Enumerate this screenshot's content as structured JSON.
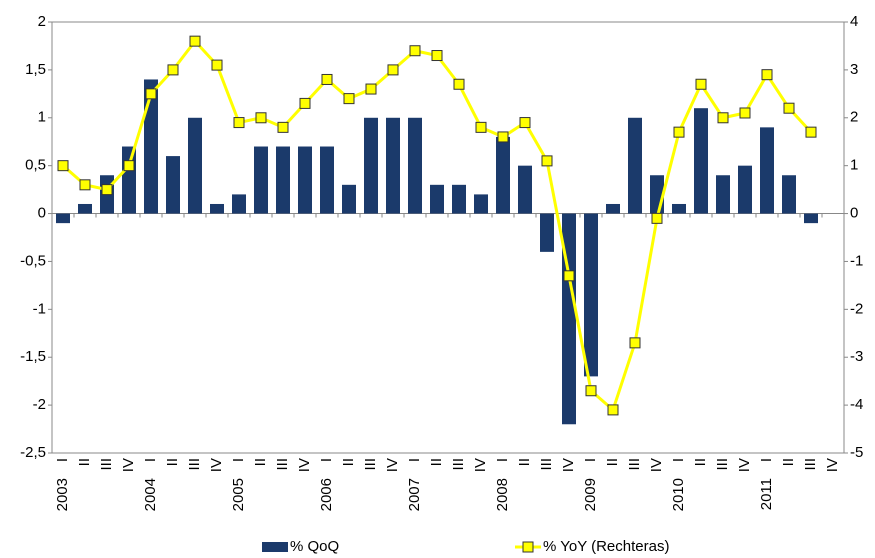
{
  "chart_data": {
    "type": "bar-line",
    "categories": [
      "I",
      "II",
      "III",
      "IV",
      "I",
      "II",
      "III",
      "IV",
      "I",
      "II",
      "III",
      "IV",
      "I",
      "II",
      "III",
      "IV",
      "I",
      "II",
      "III",
      "IV",
      "I",
      "II",
      "III",
      "IV",
      "I",
      "II",
      "III",
      "IV",
      "I",
      "II",
      "III",
      "IV",
      "I",
      "II",
      "III",
      "IV"
    ],
    "years": [
      "2003",
      "2004",
      "2005",
      "2006",
      "2007",
      "2008",
      "2009",
      "2010",
      "2011"
    ],
    "series": [
      {
        "name": "% QoQ",
        "type": "bar",
        "color": "#1b3a6b",
        "values": [
          -0.1,
          0.1,
          0.4,
          0.7,
          1.4,
          0.6,
          1.0,
          0.1,
          0.2,
          0.7,
          0.7,
          0.7,
          0.7,
          0.3,
          1.0,
          1.0,
          1.0,
          0.3,
          0.3,
          0.2,
          0.8,
          0.5,
          -0.4,
          -2.2,
          -1.7,
          0.1,
          1.0,
          0.4,
          0.1,
          1.1,
          0.4,
          0.5,
          0.9,
          0.4,
          -0.1,
          null
        ]
      },
      {
        "name": "% YoY (Rechteras)",
        "type": "line",
        "axis": "y2",
        "color": "#ffff00",
        "marker_edge": "#333333",
        "values": [
          1.0,
          0.6,
          0.5,
          1.0,
          2.5,
          3.0,
          3.6,
          3.1,
          1.9,
          2.0,
          1.8,
          2.3,
          2.8,
          2.4,
          2.6,
          3.0,
          3.4,
          3.3,
          2.7,
          1.8,
          1.6,
          1.9,
          1.1,
          -1.3,
          -3.7,
          -4.1,
          -2.7,
          -0.1,
          1.7,
          2.7,
          2.0,
          2.1,
          2.9,
          2.2,
          1.7,
          null
        ]
      }
    ],
    "ylim": [
      -2.5,
      2
    ],
    "yticks": [
      2,
      {
        "value": 1.5,
        "label": "1,5"
      },
      1,
      {
        "value": 0.5,
        "label": "0,5"
      },
      0,
      {
        "value": -0.5,
        "label": "-0,5"
      },
      -1,
      {
        "value": -1.5,
        "label": "-1,5"
      },
      -2,
      {
        "value": -2.5,
        "label": "-2,5"
      }
    ],
    "y2lim": [
      -5,
      4
    ],
    "y2ticks": [
      4,
      3,
      2,
      1,
      0,
      -1,
      -2,
      -3,
      -4,
      -5
    ],
    "grid": false,
    "legend": "bottom"
  }
}
